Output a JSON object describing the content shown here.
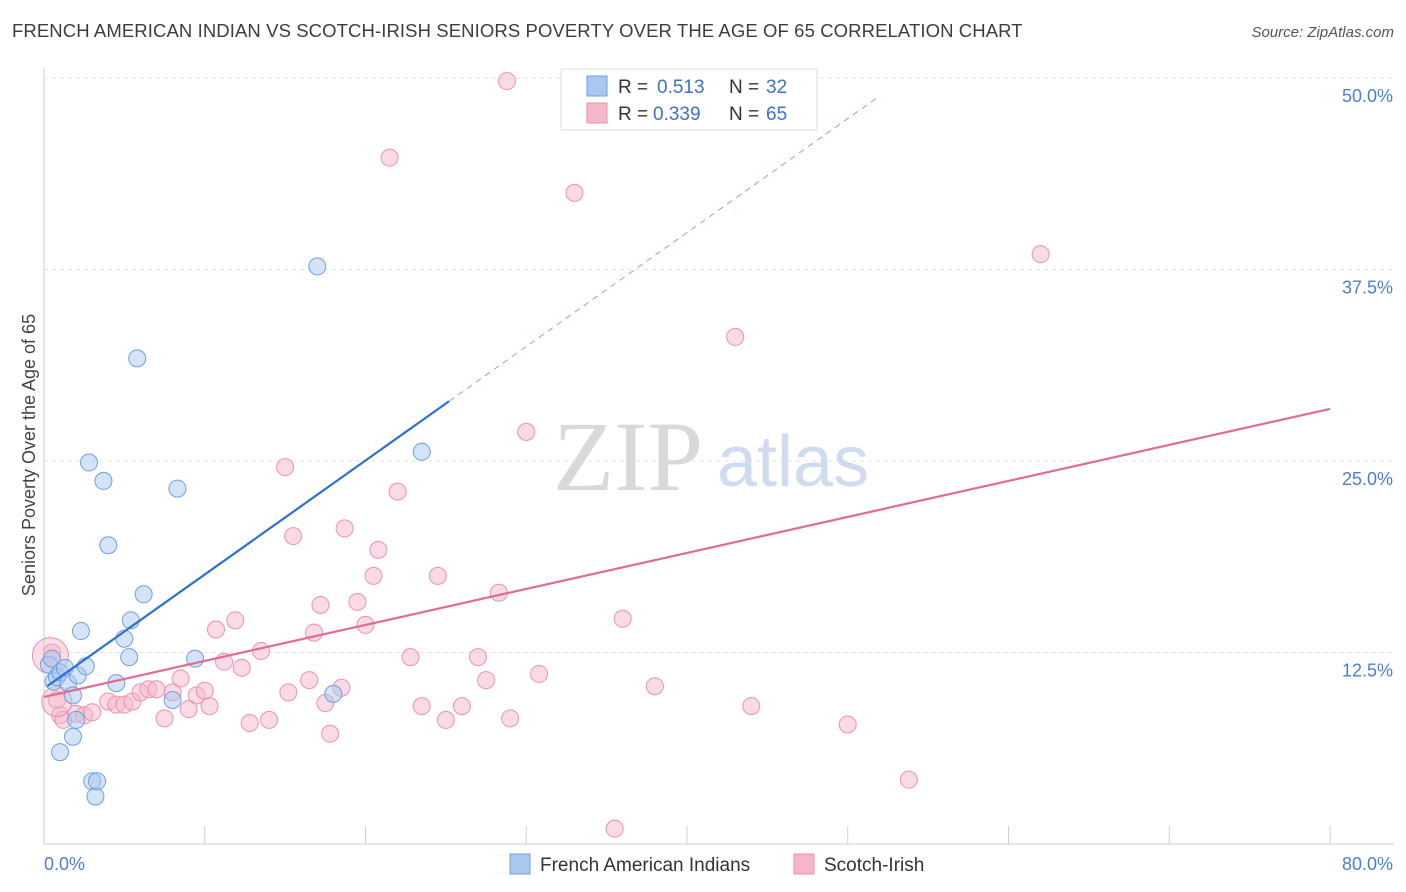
{
  "title": "FRENCH AMERICAN INDIAN VS SCOTCH-IRISH SENIORS POVERTY OVER THE AGE OF 65 CORRELATION CHART",
  "source": "Source: ZipAtlas.com",
  "watermark": {
    "zip": "ZIP",
    "atlas": "atlas"
  },
  "legend_top": [
    {
      "r_label": "R =",
      "r_value": "0.513",
      "n_label": "N =",
      "n_value": "32"
    },
    {
      "r_label": "R =",
      "r_value": "0.339",
      "n_label": "N =",
      "n_value": "65"
    }
  ],
  "colors": {
    "blue_fill": "#a9c8ef",
    "blue_stroke": "#6f9fdc",
    "blue_line": "#2f6fcf",
    "pink_fill": "#f5b6c9",
    "pink_stroke": "#e993ae",
    "pink_line": "#e06b93",
    "tick_text": "#4a7fd0",
    "grid": "#e3e3e3"
  },
  "chart_data": {
    "type": "scatter",
    "xlabel": "",
    "ylabel": "Seniors Poverty Over the Age of 65",
    "xlim": [
      0,
      80
    ],
    "ylim": [
      0,
      50
    ],
    "x_tick_labels": [
      "0.0%",
      "80.0%"
    ],
    "y_ticks": [
      12.5,
      25.0,
      37.5,
      50.0
    ],
    "y_tick_labels": [
      "12.5%",
      "25.0%",
      "37.5%",
      "50.0%"
    ],
    "grid": true,
    "legend_position": "top-center",
    "series": [
      {
        "name": "French American Indians",
        "r": 0.513,
        "n": 32,
        "trend": {
          "x0": 0.2,
          "y0": 10.3,
          "x1": 25.2,
          "y1": 28.9,
          "x_end": 52.0
        },
        "points": [
          [
            0.3,
            11.7
          ],
          [
            0.5,
            12.1
          ],
          [
            0.6,
            10.6
          ],
          [
            0.8,
            10.9
          ],
          [
            1.0,
            11.2
          ],
          [
            1.3,
            11.5
          ],
          [
            1.5,
            10.5
          ],
          [
            1.8,
            9.7
          ],
          [
            2.1,
            11.0
          ],
          [
            2.3,
            13.9
          ],
          [
            2.6,
            11.6
          ],
          [
            2.8,
            24.9
          ],
          [
            1.0,
            6.0
          ],
          [
            1.8,
            7.0
          ],
          [
            3.0,
            4.1
          ],
          [
            3.2,
            3.1
          ],
          [
            3.3,
            4.1
          ],
          [
            3.7,
            23.7
          ],
          [
            4.0,
            19.5
          ],
          [
            4.5,
            10.5
          ],
          [
            5.0,
            13.4
          ],
          [
            5.3,
            12.2
          ],
          [
            5.4,
            14.6
          ],
          [
            5.8,
            31.7
          ],
          [
            6.2,
            16.3
          ],
          [
            8.3,
            23.2
          ],
          [
            9.4,
            12.1
          ],
          [
            8.0,
            9.4
          ],
          [
            2.0,
            8.1
          ],
          [
            17.0,
            37.7
          ],
          [
            18.0,
            9.8
          ],
          [
            23.5,
            25.6
          ]
        ]
      },
      {
        "name": "Scotch-Irish",
        "r": 0.339,
        "n": 65,
        "trend": {
          "x0": 0.0,
          "y0": 9.6,
          "x1": 80.0,
          "y1": 28.4
        },
        "points": [
          [
            0.5,
            12.5
          ],
          [
            0.8,
            9.4
          ],
          [
            1.0,
            8.4
          ],
          [
            1.2,
            8.1
          ],
          [
            2.0,
            8.5
          ],
          [
            2.5,
            8.4
          ],
          [
            3.0,
            8.6
          ],
          [
            4.0,
            9.3
          ],
          [
            4.5,
            9.1
          ],
          [
            5.0,
            9.1
          ],
          [
            5.5,
            9.3
          ],
          [
            6.0,
            9.9
          ],
          [
            6.5,
            10.1
          ],
          [
            7.0,
            10.1
          ],
          [
            7.5,
            8.2
          ],
          [
            8.0,
            9.9
          ],
          [
            8.5,
            10.8
          ],
          [
            9.0,
            8.8
          ],
          [
            9.5,
            9.7
          ],
          [
            10.0,
            10.0
          ],
          [
            10.3,
            9.0
          ],
          [
            10.7,
            14.0
          ],
          [
            11.2,
            11.9
          ],
          [
            11.9,
            14.6
          ],
          [
            12.3,
            11.5
          ],
          [
            12.8,
            7.9
          ],
          [
            13.5,
            12.6
          ],
          [
            14.0,
            8.1
          ],
          [
            15.0,
            24.6
          ],
          [
            15.5,
            20.1
          ],
          [
            15.2,
            9.9
          ],
          [
            16.5,
            10.7
          ],
          [
            16.8,
            13.8
          ],
          [
            17.2,
            15.6
          ],
          [
            17.5,
            9.2
          ],
          [
            17.8,
            7.2
          ],
          [
            18.5,
            10.2
          ],
          [
            18.7,
            20.6
          ],
          [
            19.5,
            15.8
          ],
          [
            20.0,
            14.3
          ],
          [
            20.5,
            17.5
          ],
          [
            20.8,
            19.2
          ],
          [
            21.5,
            44.8
          ],
          [
            22.0,
            23.0
          ],
          [
            22.8,
            12.2
          ],
          [
            23.5,
            9.0
          ],
          [
            24.5,
            17.5
          ],
          [
            25.0,
            8.1
          ],
          [
            26.0,
            9.0
          ],
          [
            27.0,
            12.2
          ],
          [
            27.5,
            10.7
          ],
          [
            28.3,
            16.4
          ],
          [
            28.8,
            49.8
          ],
          [
            29.0,
            8.2
          ],
          [
            30.0,
            26.9
          ],
          [
            30.8,
            11.1
          ],
          [
            33.0,
            42.5
          ],
          [
            35.5,
            1.0
          ],
          [
            36.0,
            14.7
          ],
          [
            38.0,
            10.3
          ],
          [
            43.0,
            33.1
          ],
          [
            44.0,
            9.0
          ],
          [
            50.0,
            7.8
          ],
          [
            53.8,
            4.2
          ],
          [
            62.0,
            38.5
          ]
        ]
      }
    ]
  }
}
